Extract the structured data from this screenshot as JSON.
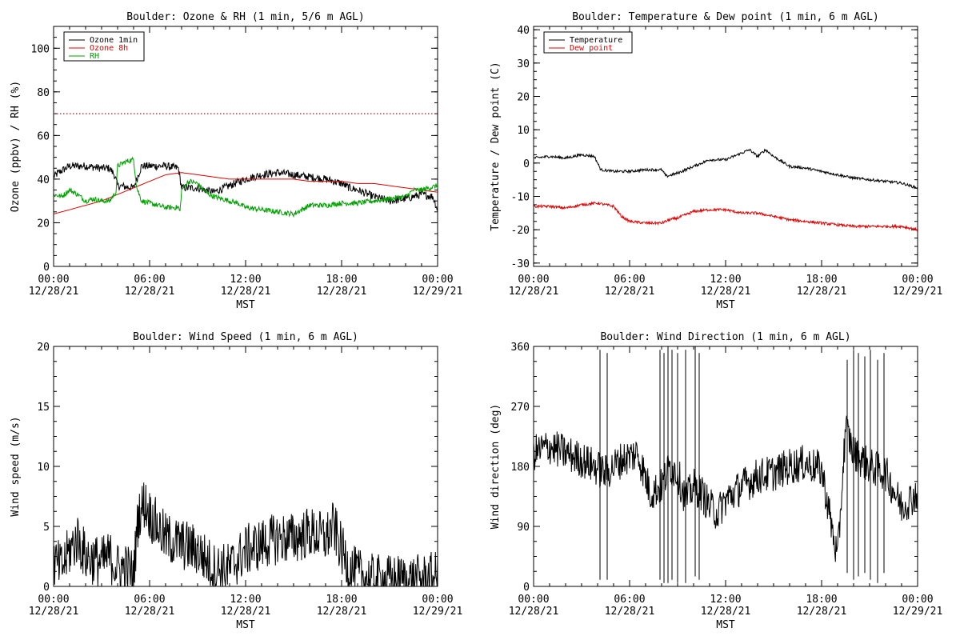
{
  "chart_data": [
    {
      "type": "line",
      "title": "Boulder: Ozone & RH (1 min, 5/6 m AGL)",
      "xlabel": "MST",
      "ylabel": "Ozone (ppbv) / RH (%)",
      "xlim": [
        0,
        24
      ],
      "ylim": [
        0,
        110
      ],
      "yticks": [
        0,
        20,
        40,
        60,
        80,
        100
      ],
      "xtick_labels": [
        [
          "00:00",
          "12/28/21"
        ],
        [
          "06:00",
          "12/28/21"
        ],
        [
          "12:00",
          "12/28/21"
        ],
        [
          "18:00",
          "12/28/21"
        ],
        [
          "00:00",
          "12/29/21"
        ]
      ],
      "legend_position": "top-left",
      "reference_line": {
        "y": 70,
        "color": "#e00000",
        "style": "dotted"
      },
      "series": [
        {
          "name": "Ozone 1min",
          "color": "#000000",
          "noise": 1.8,
          "x": [
            0,
            0.3,
            1,
            2,
            3,
            3.5,
            3.8,
            4,
            5,
            5.5,
            6,
            7,
            7.8,
            8,
            9,
            10,
            11,
            12,
            13,
            14,
            15,
            16,
            17,
            18,
            18.5,
            19,
            20,
            21,
            22,
            23,
            23.7,
            24
          ],
          "y": [
            41,
            43,
            46,
            46,
            45,
            45,
            42,
            37,
            36,
            46,
            46,
            46,
            45,
            36,
            36,
            34,
            37,
            40,
            42,
            43,
            42,
            41,
            40,
            38,
            36,
            35,
            32,
            30,
            31,
            33,
            32,
            26
          ]
        },
        {
          "name": "Ozone 8h",
          "color": "#e00000",
          "noise": 0,
          "x": [
            0,
            1,
            2,
            3,
            4,
            5,
            6,
            7,
            8,
            9,
            10,
            11,
            12,
            13,
            14,
            15,
            16,
            17,
            18,
            19,
            20,
            21,
            22,
            23,
            24
          ],
          "y": [
            24,
            26,
            28,
            30,
            33,
            36,
            39,
            42,
            43,
            42,
            41,
            40,
            40,
            40,
            40,
            40,
            39,
            39,
            39,
            38,
            38,
            37,
            36,
            35,
            34
          ]
        },
        {
          "name": "RH",
          "color": "#00a000",
          "noise": 1.2,
          "x": [
            0,
            0.5,
            1,
            1.5,
            2,
            2.5,
            3,
            3.5,
            3.9,
            4,
            4.5,
            5,
            5.2,
            5.5,
            6,
            6.5,
            7,
            7.8,
            7.9,
            8,
            8.3,
            8.5,
            9,
            9.5,
            10,
            10.5,
            11,
            11.5,
            12,
            13,
            14,
            15,
            15.5,
            16,
            17,
            18,
            19,
            20,
            21,
            22,
            22.5,
            23,
            24
          ],
          "y": [
            33,
            32,
            35,
            33,
            30,
            31,
            30,
            30,
            34,
            46,
            48,
            49,
            36,
            30,
            29,
            28,
            27,
            27,
            25,
            35,
            38,
            39,
            38,
            34,
            32,
            31,
            30,
            29,
            27,
            26,
            25,
            24,
            26,
            28,
            28,
            29,
            29,
            30,
            31,
            32,
            35,
            35,
            37
          ]
        }
      ]
    },
    {
      "type": "line",
      "title": "Boulder: Temperature & Dew point (1 min, 6 m AGL)",
      "xlabel": "MST",
      "ylabel": "Temperature / Dew point (C)",
      "xlim": [
        0,
        24
      ],
      "ylim": [
        -31,
        41
      ],
      "yticks": [
        -30,
        -20,
        -10,
        0,
        10,
        20,
        30,
        40
      ],
      "xtick_labels": [
        [
          "00:00",
          "12/28/21"
        ],
        [
          "06:00",
          "12/28/21"
        ],
        [
          "12:00",
          "12/28/21"
        ],
        [
          "18:00",
          "12/28/21"
        ],
        [
          "00:00",
          "12/29/21"
        ]
      ],
      "legend_position": "top-left",
      "series": [
        {
          "name": "Temperature",
          "color": "#000000",
          "noise": 0.4,
          "x": [
            0,
            1,
            2,
            3,
            3.8,
            4,
            4.2,
            5,
            6,
            7,
            8,
            8.3,
            9,
            10,
            11,
            12,
            13,
            13.5,
            14,
            14.5,
            15,
            16,
            17,
            18,
            19,
            20,
            21,
            22,
            23,
            24
          ],
          "y": [
            1.5,
            2,
            1.5,
            2.5,
            2,
            0,
            -2,
            -2.5,
            -2.5,
            -2,
            -2,
            -4,
            -3,
            -1,
            1,
            1,
            3,
            4,
            2,
            4,
            2,
            -1,
            -1.5,
            -2.5,
            -3.5,
            -4.5,
            -5,
            -5.5,
            -6,
            -7.5
          ]
        },
        {
          "name": "Dew point",
          "color": "#e00000",
          "noise": 0.4,
          "x": [
            0,
            1,
            2,
            3,
            4,
            5,
            5.5,
            6,
            7,
            8,
            8.5,
            9,
            10,
            11,
            12,
            13,
            14,
            15,
            16,
            17,
            18,
            19,
            20,
            21,
            22,
            23,
            24
          ],
          "y": [
            -13,
            -13,
            -13.5,
            -12.5,
            -12,
            -13,
            -16,
            -17.5,
            -18,
            -18,
            -17,
            -16.5,
            -14.5,
            -14,
            -14,
            -15,
            -15,
            -16,
            -17,
            -17.5,
            -18,
            -18.5,
            -19,
            -19,
            -19,
            -19,
            -20
          ]
        }
      ]
    },
    {
      "type": "line",
      "title": "Boulder: Wind Speed (1 min, 6 m AGL)",
      "xlabel": "MST",
      "ylabel": "Wind speed (m/s)",
      "xlim": [
        0,
        24
      ],
      "ylim": [
        0,
        20
      ],
      "yticks": [
        0,
        5,
        10,
        15,
        20
      ],
      "xtick_labels": [
        [
          "00:00",
          "12/28/21"
        ],
        [
          "06:00",
          "12/28/21"
        ],
        [
          "12:00",
          "12/28/21"
        ],
        [
          "18:00",
          "12/28/21"
        ],
        [
          "00:00",
          "12/29/21"
        ]
      ],
      "series": [
        {
          "color": "#000000",
          "noise": 2.2,
          "x": [
            0,
            0.5,
            1,
            1.5,
            2,
            3,
            3.5,
            4,
            4.5,
            5,
            5.3,
            5.7,
            6,
            6.5,
            7,
            8,
            9,
            10,
            11,
            12,
            13,
            14,
            15,
            16,
            17,
            17.5,
            18,
            18.5,
            19,
            20,
            21,
            22,
            23,
            24
          ],
          "y": [
            2,
            1.5,
            3,
            4,
            2.5,
            2,
            2.5,
            1.5,
            1.5,
            1,
            6,
            7,
            6,
            5,
            4,
            3.5,
            3,
            1.5,
            1.5,
            3,
            3.5,
            4,
            4,
            4.5,
            4,
            5,
            3,
            1.5,
            1,
            0.5,
            0.5,
            0.5,
            0.5,
            0.8
          ]
        }
      ]
    },
    {
      "type": "line",
      "title": "Boulder: Wind Direction (1 min, 6 m AGL)",
      "xlabel": "MST",
      "ylabel": "Wind direction (deg)",
      "xlim": [
        0,
        24
      ],
      "ylim": [
        0,
        360
      ],
      "yticks": [
        0,
        90,
        180,
        270,
        360
      ],
      "xtick_labels": [
        [
          "00:00",
          "12/28/21"
        ],
        [
          "06:00",
          "12/28/21"
        ],
        [
          "12:00",
          "12/28/21"
        ],
        [
          "18:00",
          "12/28/21"
        ],
        [
          "00:00",
          "12/29/21"
        ]
      ],
      "series": [
        {
          "color": "#000000",
          "noise": 28,
          "x": [
            0,
            1,
            2,
            3,
            3.8,
            4.5,
            5.5,
            6.5,
            7.3,
            8,
            8.5,
            9,
            9.5,
            10,
            10.5,
            11,
            11.5,
            12,
            13,
            14,
            15,
            16,
            17,
            18,
            18.7,
            19,
            19.5,
            20,
            21,
            22,
            23,
            24
          ],
          "y": [
            200,
            210,
            200,
            190,
            180,
            170,
            190,
            200,
            140,
            150,
            180,
            170,
            130,
            150,
            140,
            120,
            110,
            130,
            150,
            165,
            170,
            180,
            185,
            175,
            80,
            40,
            240,
            200,
            180,
            170,
            120,
            140
          ]
        },
        {
          "color": "#000000",
          "noise": 0,
          "segments": true,
          "x": [
            4.15,
            4.15,
            4.6,
            4.6,
            7.9,
            7.9,
            8.15,
            8.15,
            8.4,
            8.4,
            8.65,
            8.65,
            9.0,
            9.0,
            9.5,
            9.5,
            10.1,
            10.1,
            10.35,
            10.35,
            19.6,
            19.6,
            20.0,
            20.0,
            20.3,
            20.3,
            20.7,
            20.7,
            21.05,
            21.05,
            21.5,
            21.5,
            21.9,
            21.9
          ],
          "y": [
            355,
            10,
            10,
            350,
            355,
            10,
            5,
            350,
            360,
            5,
            10,
            355,
            350,
            5,
            5,
            355,
            360,
            15,
            10,
            350,
            340,
            20,
            10,
            355,
            350,
            15,
            20,
            345,
            355,
            10,
            5,
            340,
            350,
            20
          ]
        }
      ]
    }
  ]
}
